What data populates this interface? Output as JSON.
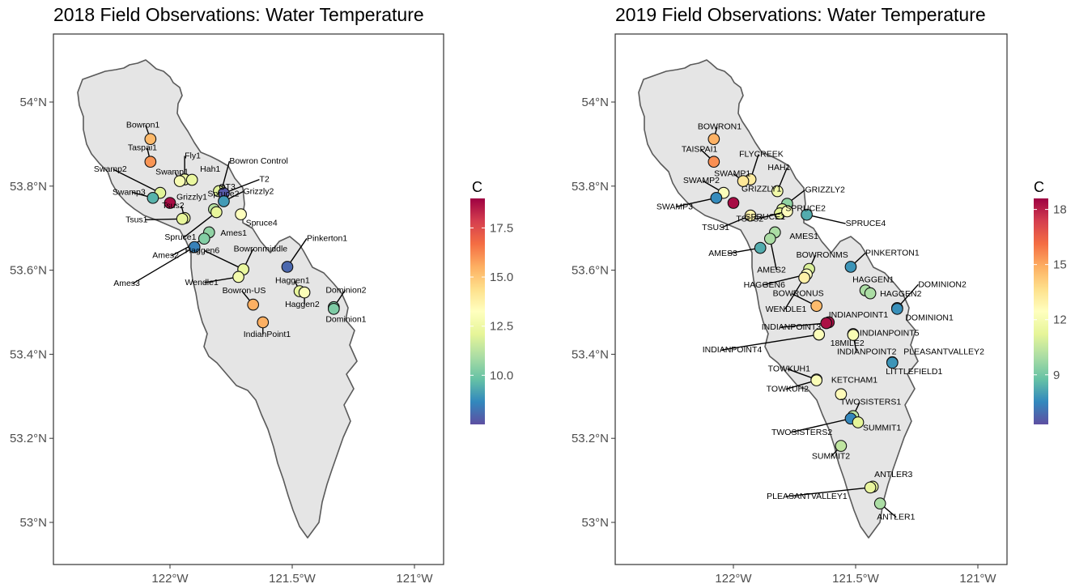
{
  "chart_data": [
    {
      "type": "scatter",
      "title": "2018 Field Observations: Water Temperature",
      "x_ticks": [
        "122°W",
        "121.5°W",
        "121°W"
      ],
      "y_ticks": [
        "53°N",
        "53.2°N",
        "53.4°N",
        "53.6°N",
        "53.8°N",
        "54°N"
      ],
      "xlim": [
        -122.42,
        -120.9
      ],
      "ylim": [
        52.9,
        54.16
      ],
      "grid": false,
      "legend": {
        "title": "C",
        "placement": "right",
        "ticks": [
          10.0,
          12.5,
          15.0,
          17.5
        ],
        "tick_labels": [
          "10.0",
          "12.5",
          "15.0",
          "17.5"
        ],
        "range": [
          7.5,
          19.0
        ]
      },
      "points": [
        {
          "name": "Bowron1",
          "x": -122.08,
          "y": 53.912,
          "value": 15.3
        },
        {
          "name": "Taspai1",
          "x": -122.08,
          "y": 53.858,
          "value": 16.0
        },
        {
          "name": "Fly1",
          "x": -121.94,
          "y": 53.816,
          "value": 12.6
        },
        {
          "name": "Swamp1",
          "x": -121.96,
          "y": 53.812,
          "value": 12.9
        },
        {
          "name": "Hah1",
          "x": -121.91,
          "y": 53.815,
          "value": 12.3
        },
        {
          "name": "Bowron Control",
          "x": -121.79,
          "y": 53.788,
          "value": 12.3
        },
        {
          "name": "OT3",
          "x": -121.8,
          "y": 53.788,
          "value": 12.0
        },
        {
          "name": "T2",
          "x": -121.78,
          "y": 53.783,
          "value": 7.7
        },
        {
          "name": "Swamp2",
          "x": -122.04,
          "y": 53.784,
          "value": 12.0
        },
        {
          "name": "Swamp3",
          "x": -122.07,
          "y": 53.772,
          "value": 9.5
        },
        {
          "name": "Grizzly1",
          "x": -122.0,
          "y": 53.76,
          "value": 18.8
        },
        {
          "name": "Grizzly2",
          "x": -121.78,
          "y": 53.764,
          "value": 9.0
        },
        {
          "name": "Tsus2",
          "x": -121.94,
          "y": 53.724,
          "value": 12.2
        },
        {
          "name": "Tsus1",
          "x": -121.95,
          "y": 53.722,
          "value": 12.2
        },
        {
          "name": "Spruce2",
          "x": -121.82,
          "y": 53.745,
          "value": 11.2
        },
        {
          "name": "Spruce4",
          "x": -121.71,
          "y": 53.733,
          "value": 13.2
        },
        {
          "name": "Spruce1",
          "x": -121.81,
          "y": 53.738,
          "value": 12.2
        },
        {
          "name": "Ames1",
          "x": -121.84,
          "y": 53.69,
          "value": 10.5
        },
        {
          "name": "Ames2",
          "x": -121.86,
          "y": 53.675,
          "value": 10.3
        },
        {
          "name": "Ames3",
          "x": -121.9,
          "y": 53.655,
          "value": 8.5
        },
        {
          "name": "Pinkerton1",
          "x": -121.52,
          "y": 53.608,
          "value": 8.0
        },
        {
          "name": "Bowronmiddle",
          "x": -121.7,
          "y": 53.602,
          "value": 12.2
        },
        {
          "name": "Haggen6",
          "x": -121.7,
          "y": 53.602,
          "value": 12.3
        },
        {
          "name": "Wendle1",
          "x": -121.72,
          "y": 53.584,
          "value": 12.7
        },
        {
          "name": "Haggen1",
          "x": -121.47,
          "y": 53.55,
          "value": 12.2
        },
        {
          "name": "Haggen2",
          "x": -121.45,
          "y": 53.547,
          "value": 13.0
        },
        {
          "name": "Bowron-US",
          "x": -121.66,
          "y": 53.518,
          "value": 15.5
        },
        {
          "name": "Dominion2",
          "x": -121.33,
          "y": 53.512,
          "value": 10.2
        },
        {
          "name": "Dominion1",
          "x": -121.33,
          "y": 53.508,
          "value": 10.2
        },
        {
          "name": "IndianPoint1",
          "x": -121.62,
          "y": 53.476,
          "value": 15.5
        }
      ]
    },
    {
      "type": "scatter",
      "title": "2019 Field Observations: Water Temperature",
      "x_ticks": [
        "122°W",
        "121.5°W",
        "121°W"
      ],
      "y_ticks": [
        "53°N",
        "53.2°N",
        "53.4°N",
        "53.6°N",
        "53.8°N",
        "54°N"
      ],
      "xlim": [
        -122.42,
        -120.9
      ],
      "ylim": [
        52.9,
        54.16
      ],
      "grid": false,
      "legend": {
        "title": "C",
        "placement": "right",
        "ticks": [
          9,
          12,
          15,
          18
        ],
        "tick_labels": [
          "9",
          "12",
          "15",
          "18"
        ],
        "range": [
          6.3,
          18.6
        ]
      },
      "points": [
        {
          "name": "BOWRON1",
          "x": -122.08,
          "y": 53.912,
          "value": 14.8
        },
        {
          "name": "TAISPAI1",
          "x": -122.08,
          "y": 53.858,
          "value": 15.5
        },
        {
          "name": "FLYCREEK",
          "x": -121.93,
          "y": 53.816,
          "value": 13.2
        },
        {
          "name": "SWAMP1",
          "x": -121.96,
          "y": 53.812,
          "value": 13.4
        },
        {
          "name": "HAH1",
          "x": -121.82,
          "y": 53.788,
          "value": 11.8
        },
        {
          "name": "SWAMP2",
          "x": -122.04,
          "y": 53.784,
          "value": 12.3
        },
        {
          "name": "SWAMP3",
          "x": -122.07,
          "y": 53.772,
          "value": 7.6
        },
        {
          "name": "GRIZZLY1",
          "x": -122.0,
          "y": 53.76,
          "value": 18.4
        },
        {
          "name": "GRIZZLY2",
          "x": -121.78,
          "y": 53.758,
          "value": 9.5
        },
        {
          "name": "SPRUCE2",
          "x": -121.8,
          "y": 53.745,
          "value": 11.0
        },
        {
          "name": "SPRUCE4",
          "x": -121.7,
          "y": 53.732,
          "value": 8.3
        },
        {
          "name": "TSUS2",
          "x": -121.81,
          "y": 53.735,
          "value": 11.2
        },
        {
          "name": "SPRUCE1",
          "x": -121.78,
          "y": 53.74,
          "value": 12.4
        },
        {
          "name": "TSUS1",
          "x": -121.93,
          "y": 53.73,
          "value": 12.9
        },
        {
          "name": "AMES1",
          "x": -121.83,
          "y": 53.69,
          "value": 10.0
        },
        {
          "name": "AMES2",
          "x": -121.85,
          "y": 53.675,
          "value": 10.0
        },
        {
          "name": "AMES3",
          "x": -121.89,
          "y": 53.653,
          "value": 8.3
        },
        {
          "name": "BOWRONMS",
          "x": -121.69,
          "y": 53.603,
          "value": 11.0
        },
        {
          "name": "PINKERTON1",
          "x": -121.52,
          "y": 53.608,
          "value": 7.8
        },
        {
          "name": "HAGGEN6",
          "x": -121.7,
          "y": 53.59,
          "value": 12.4
        },
        {
          "name": "HAGGEN1",
          "x": -121.46,
          "y": 53.552,
          "value": 10.0
        },
        {
          "name": "HAGGEN2",
          "x": -121.44,
          "y": 53.545,
          "value": 10.0
        },
        {
          "name": "WENDLE1",
          "x": -121.71,
          "y": 53.582,
          "value": 13.0
        },
        {
          "name": "BOWRONUS",
          "x": -121.66,
          "y": 53.515,
          "value": 14.6
        },
        {
          "name": "DOMINION2",
          "x": -121.33,
          "y": 53.51,
          "value": 7.7
        },
        {
          "name": "DOMINION1",
          "x": -121.33,
          "y": 53.508,
          "value": 7.7
        },
        {
          "name": "INDIANPOINT1",
          "x": -121.61,
          "y": 53.476,
          "value": 18.3
        },
        {
          "name": "INDIANPOINT3",
          "x": -121.62,
          "y": 53.474,
          "value": 18.3
        },
        {
          "name": "INDIANPOINT5",
          "x": -121.51,
          "y": 53.448,
          "value": 12.0
        },
        {
          "name": "18MILE2",
          "x": -121.65,
          "y": 53.447,
          "value": 12.3
        },
        {
          "name": "INDIANPOINT4",
          "x": -121.65,
          "y": 53.447,
          "value": 12.3
        },
        {
          "name": "INDIANPOINT2",
          "x": -121.51,
          "y": 53.446,
          "value": 12.1
        },
        {
          "name": "PLEASANTVALLEY2",
          "x": -121.35,
          "y": 53.381,
          "value": 7.8
        },
        {
          "name": "LITTLEFIELD1",
          "x": -121.35,
          "y": 53.38,
          "value": 7.8
        },
        {
          "name": "TOWKUH1",
          "x": -121.66,
          "y": 53.34,
          "value": 12.2
        },
        {
          "name": "TOWKUH2",
          "x": -121.66,
          "y": 53.338,
          "value": 12.2
        },
        {
          "name": "KETCHAM1",
          "x": -121.56,
          "y": 53.305,
          "value": 12.6
        },
        {
          "name": "TWOSISTERS1",
          "x": -121.51,
          "y": 53.253,
          "value": 10.3
        },
        {
          "name": "TWOSISTERS2",
          "x": -121.52,
          "y": 53.247,
          "value": 7.5
        },
        {
          "name": "SUMMIT1",
          "x": -121.49,
          "y": 53.238,
          "value": 11.2
        },
        {
          "name": "SUMMIT2",
          "x": -121.56,
          "y": 53.182,
          "value": 10.4
        },
        {
          "name": "ANTLER3",
          "x": -121.43,
          "y": 53.085,
          "value": 11.4
        },
        {
          "name": "PLEASANTVALLEY1",
          "x": -121.44,
          "y": 53.083,
          "value": 11.4
        },
        {
          "name": "ANTLER1",
          "x": -121.4,
          "y": 53.045,
          "value": 10.0
        }
      ]
    }
  ],
  "colors": {
    "watershed_fill": "#e5e5e5",
    "watershed_stroke": "#5a5a5a",
    "panel_border": "#333333",
    "spectral_ramp": [
      "#5E4FA2",
      "#3288BD",
      "#66C2A5",
      "#ABDDA4",
      "#E6F598",
      "#FFFFBF",
      "#FEE08B",
      "#FDAE61",
      "#F46D43",
      "#D53E4F",
      "#9E0142"
    ]
  }
}
